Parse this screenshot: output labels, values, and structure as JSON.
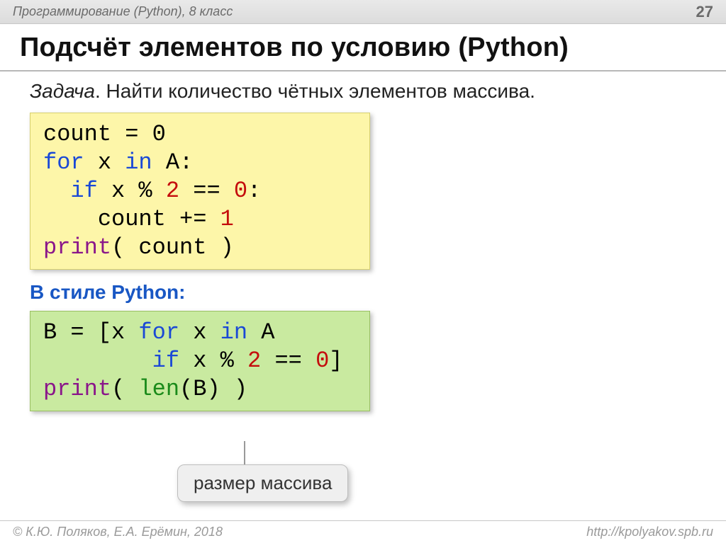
{
  "topbar": {
    "subject": "Программирование (Python), 8 класс",
    "page_number": "27"
  },
  "title": "Подсчёт элементов по условию (Python)",
  "task": {
    "label": "Задача",
    "text": ". Найти количество чётных элементов массива."
  },
  "code1": {
    "background": "#fdf6a9",
    "lines": [
      [
        {
          "t": "count = ",
          "c": "#000000"
        },
        {
          "t": "0",
          "c": "#000000"
        }
      ],
      [
        {
          "t": "for",
          "c": "#1a49d6"
        },
        {
          "t": " x ",
          "c": "#000000"
        },
        {
          "t": "in",
          "c": "#1a49d6"
        },
        {
          "t": " A:",
          "c": "#000000"
        }
      ],
      [
        {
          "t": "  ",
          "c": "#000000"
        },
        {
          "t": "if",
          "c": "#1a49d6"
        },
        {
          "t": " x % ",
          "c": "#000000"
        },
        {
          "t": "2",
          "c": "#c40d0d"
        },
        {
          "t": " == ",
          "c": "#000000"
        },
        {
          "t": "0",
          "c": "#c40d0d"
        },
        {
          "t": ":",
          "c": "#000000"
        }
      ],
      [
        {
          "t": "    count += ",
          "c": "#000000"
        },
        {
          "t": "1",
          "c": "#c40d0d"
        }
      ],
      [
        {
          "t": "print",
          "c": "#8a168a"
        },
        {
          "t": "( count )",
          "c": "#000000"
        }
      ]
    ]
  },
  "subhead": "В стиле Python:",
  "code2": {
    "background": "#c9eaa0",
    "lines": [
      [
        {
          "t": "B = [x ",
          "c": "#000000"
        },
        {
          "t": "for",
          "c": "#1a49d6"
        },
        {
          "t": " x ",
          "c": "#000000"
        },
        {
          "t": "in",
          "c": "#1a49d6"
        },
        {
          "t": " A",
          "c": "#000000"
        }
      ],
      [
        {
          "t": "        ",
          "c": "#000000"
        },
        {
          "t": "if",
          "c": "#1a49d6"
        },
        {
          "t": " x % ",
          "c": "#000000"
        },
        {
          "t": "2",
          "c": "#c40d0d"
        },
        {
          "t": " == ",
          "c": "#000000"
        },
        {
          "t": "0",
          "c": "#c40d0d"
        },
        {
          "t": "]",
          "c": "#000000"
        }
      ],
      [
        {
          "t": "print",
          "c": "#8a168a"
        },
        {
          "t": "( ",
          "c": "#000000"
        },
        {
          "t": "len",
          "c": "#1a8a1a"
        },
        {
          "t": "(B) )",
          "c": "#000000"
        }
      ]
    ]
  },
  "callout": "размер массива",
  "footer": {
    "left": "© К.Ю. Поляков, Е.А. Ерёмин, 2018",
    "right": "http://kpolyakov.spb.ru"
  },
  "colors": {
    "keyword": "#1a49d6",
    "number": "#c40d0d",
    "builtin": "#8a168a",
    "func": "#1a8a1a",
    "text": "#000000"
  }
}
